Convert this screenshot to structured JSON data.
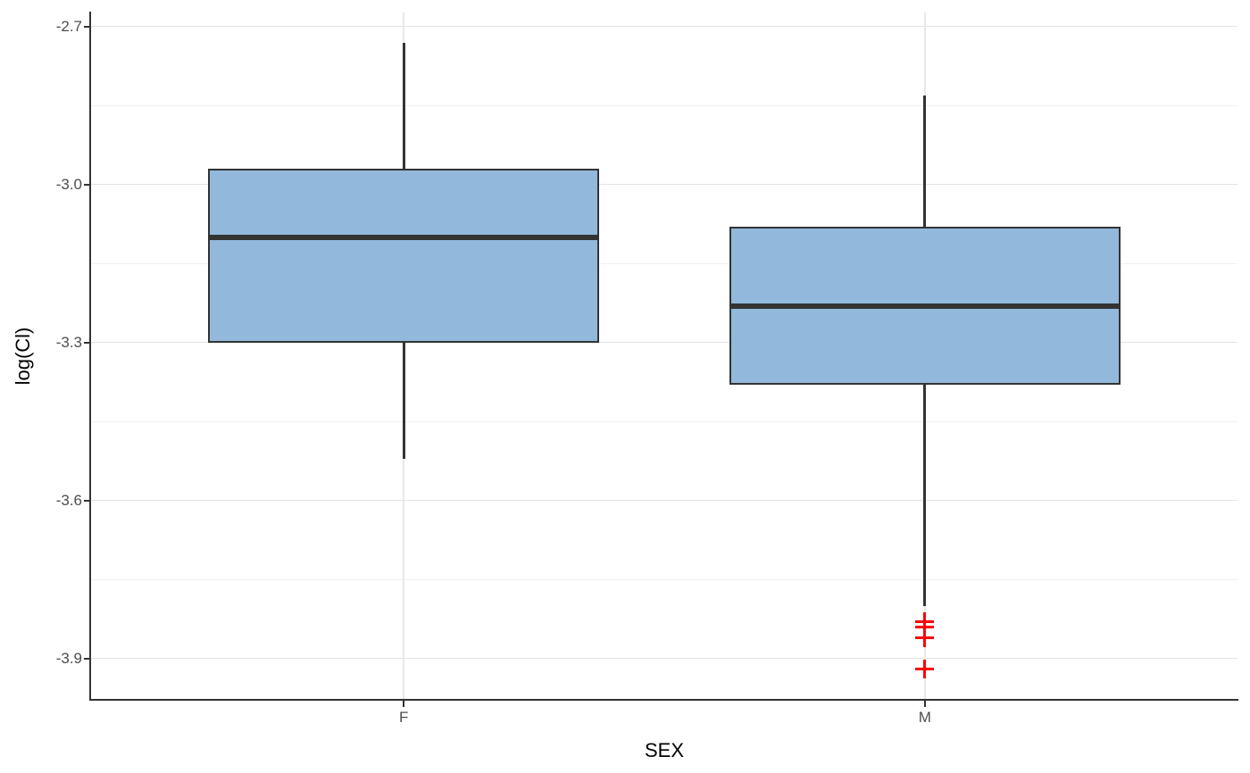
{
  "figure": {
    "background": "#ffffff"
  },
  "chart_data": {
    "type": "boxplot",
    "title": "",
    "xlabel": "SEX",
    "ylabel": "log(Cl)",
    "categories": [
      "F",
      "M"
    ],
    "y_ticks": [
      -2.7,
      -3.0,
      -3.3,
      -3.6,
      -3.9
    ],
    "y_tick_labels": [
      "-2.7",
      "-3.0",
      "-3.3",
      "-3.6",
      "-3.9"
    ],
    "y_minor_ticks": [
      -2.85,
      -3.15,
      -3.45,
      -3.75
    ],
    "ylim": [
      -3.978,
      -2.673
    ],
    "grid": "major-and-minor",
    "legend_position": "none",
    "series": [
      {
        "category": "F",
        "whisker_low": -3.52,
        "q1": -3.3,
        "median": -3.1,
        "q3": -2.97,
        "whisker_high": -2.73,
        "outliers": []
      },
      {
        "category": "M",
        "whisker_low": -3.8,
        "q1": -3.38,
        "median": -3.23,
        "q3": -3.08,
        "whisker_high": -2.83,
        "outliers": [
          -3.83,
          -3.84,
          -3.86,
          -3.92
        ]
      }
    ],
    "style": {
      "box_fill": "#92B9DC",
      "box_stroke": "#333333",
      "median_color": "#333333",
      "whisker_color": "#333333",
      "outlier_color": "#FF0000",
      "outlier_shape": "plus",
      "grid_major_color": "#E3E3E3",
      "grid_minor_color": "#F1F1F1",
      "grid_vertical_color": "#E8E8E8",
      "axis_line_color": "#333333",
      "tick_label_color": "#4D4D4D",
      "axis_title_color": "#000000"
    }
  }
}
